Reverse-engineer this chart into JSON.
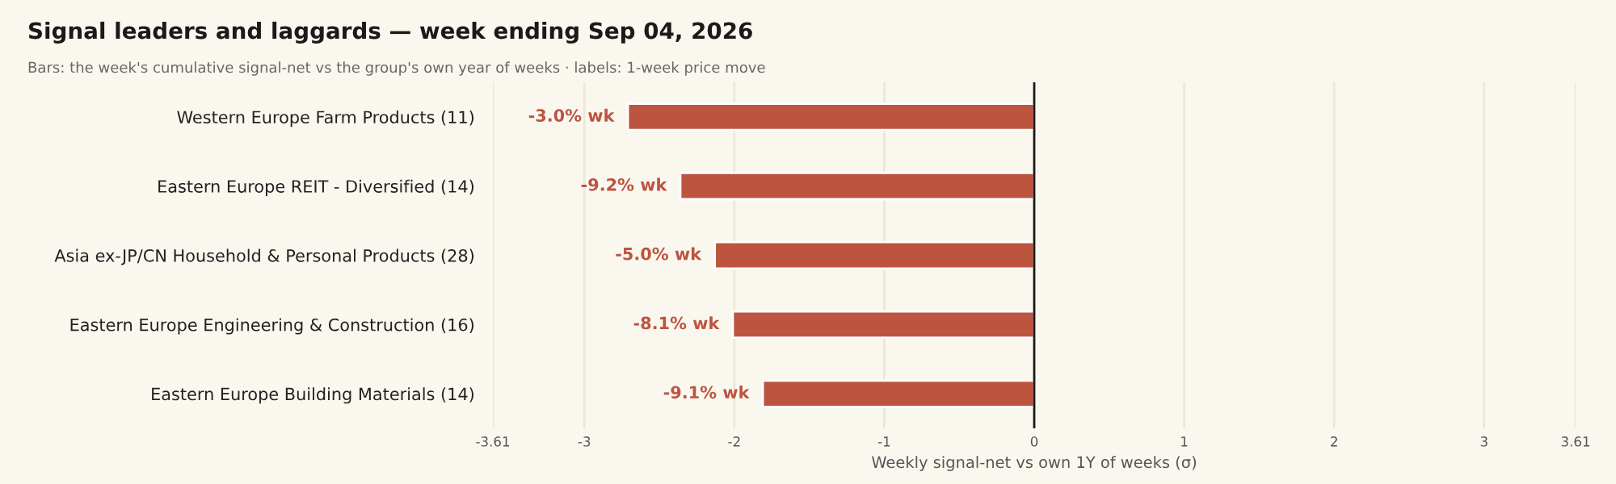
{
  "chart_data": {
    "type": "bar",
    "orientation": "horizontal",
    "title": "Signal leaders and laggards — week ending Sep 04, 2026",
    "subtitle": "Bars: the week's cumulative signal-net vs the group's own year of weeks · labels: 1-week price move",
    "xlabel": "Weekly signal-net vs own 1Y of weeks (σ)",
    "categories": [
      "Western Europe Farm Products (11)",
      "Eastern Europe REIT - Diversified (14)",
      "Asia ex-JP/CN Household & Personal Products (28)",
      "Eastern Europe Engineering & Construction (16)",
      "Eastern Europe Building Materials (14)"
    ],
    "values": [
      -2.71,
      -2.36,
      -2.13,
      -2.01,
      -1.81
    ],
    "annotations": [
      {
        "text": "-3.0% wk",
        "x": -2.71,
        "y": "Western Europe Farm Products (11)"
      },
      {
        "text": "-9.2% wk",
        "x": -2.36,
        "y": "Eastern Europe REIT - Diversified (14)"
      },
      {
        "text": "-5.0% wk",
        "x": -2.13,
        "y": "Asia ex-JP/CN Household & Personal Products (28)"
      },
      {
        "text": "-8.1% wk",
        "x": -2.01,
        "y": "Eastern Europe Engineering & Construction (16)"
      },
      {
        "text": "-9.1% wk",
        "x": -1.81,
        "y": "Eastern Europe Building Materials (14)"
      }
    ],
    "color": "#bc5440",
    "xlim": [
      -3.61,
      3.61
    ],
    "xticks": [
      -3.61,
      -3,
      -2,
      -1,
      0,
      1,
      2,
      3,
      3.61
    ],
    "grid": "x",
    "ref_lines": [
      {
        "axis": "x",
        "value": 0,
        "color": "#1a1a1a"
      }
    ]
  }
}
